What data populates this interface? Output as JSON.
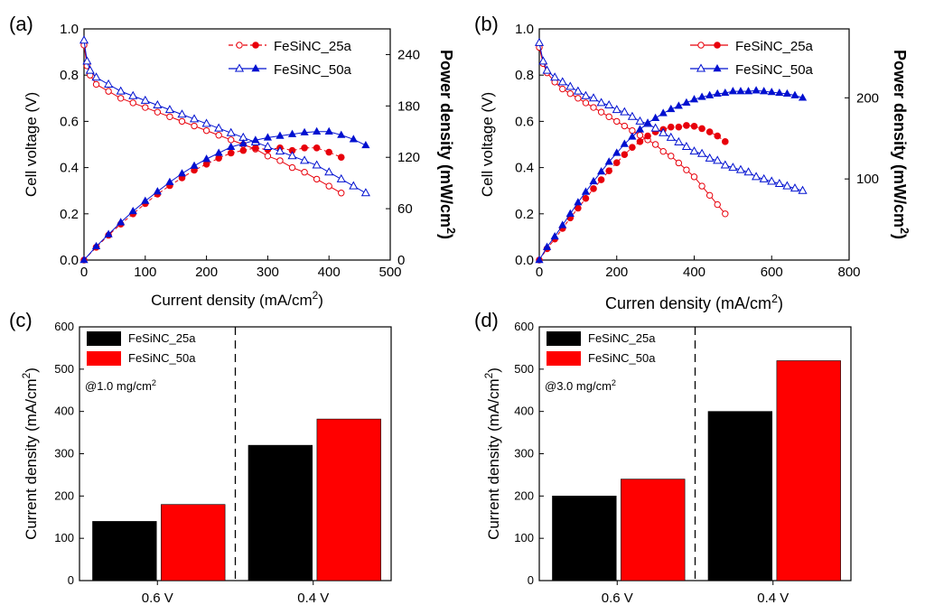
{
  "figure": {
    "panel_labels": [
      "(a)",
      "(b)",
      "(c)",
      "(d)"
    ]
  },
  "chart_data": [
    {
      "panel": "(a)",
      "type": "line",
      "xlabel": "Current density (mA/cm2)",
      "ylabel": "Cell voltage (V)",
      "y2label": "Power density (mW/cm2)",
      "xlim": [
        0,
        500
      ],
      "ylim": [
        0,
        1.0
      ],
      "y2lim": [
        0,
        270
      ],
      "x_ticks": [
        0,
        100,
        200,
        300,
        400,
        500
      ],
      "y_ticks": [
        0.0,
        0.2,
        0.4,
        0.6,
        0.8,
        1.0
      ],
      "y2_ticks": [
        0,
        60,
        120,
        180,
        240
      ],
      "legend": {
        "position": "top-right",
        "entries": [
          "FeSiNC_25a",
          "FeSiNC_50a"
        ]
      },
      "series": [
        {
          "name": "FeSiNC_25a",
          "color": "#e8000b",
          "polarization": {
            "x": [
              0,
              5,
              10,
              20,
              40,
              60,
              80,
              100,
              120,
              140,
              160,
              180,
              200,
              220,
              240,
              260,
              280,
              300,
              320,
              340,
              360,
              380,
              400,
              420
            ],
            "y": [
              0.93,
              0.84,
              0.8,
              0.76,
              0.73,
              0.7,
              0.68,
              0.66,
              0.64,
              0.62,
              0.6,
              0.58,
              0.56,
              0.54,
              0.52,
              0.5,
              0.48,
              0.45,
              0.43,
              0.4,
              0.38,
              0.35,
              0.32,
              0.29
            ]
          },
          "power": {
            "x": [
              0,
              20,
              40,
              60,
              80,
              100,
              120,
              140,
              160,
              180,
              200,
              220,
              240,
              260,
              280,
              300,
              320,
              340,
              360,
              380,
              400,
              420
            ],
            "y": [
              0,
              15,
              29,
              42,
              54,
              66,
              77,
              87,
              96,
              105,
              112,
              119,
              125,
              128,
              131,
              129,
              131,
              128,
              131,
              131,
              126,
              120
            ]
          }
        },
        {
          "name": "FeSiNC_50a",
          "color": "#0010d0",
          "polarization": {
            "x": [
              0,
              5,
              10,
              20,
              40,
              60,
              80,
              100,
              120,
              140,
              160,
              180,
              200,
              220,
              240,
              260,
              280,
              300,
              320,
              340,
              360,
              380,
              400,
              420,
              440,
              460
            ],
            "y": [
              0.95,
              0.86,
              0.82,
              0.79,
              0.76,
              0.73,
              0.71,
              0.69,
              0.67,
              0.65,
              0.63,
              0.61,
              0.59,
              0.57,
              0.55,
              0.53,
              0.51,
              0.49,
              0.47,
              0.45,
              0.43,
              0.41,
              0.38,
              0.35,
              0.32,
              0.29
            ]
          },
          "power": {
            "x": [
              0,
              20,
              40,
              60,
              80,
              100,
              120,
              140,
              160,
              180,
              200,
              220,
              240,
              260,
              280,
              300,
              320,
              340,
              360,
              380,
              400,
              420,
              440,
              460
            ],
            "y": [
              0,
              16,
              30,
              44,
              57,
              69,
              80,
              91,
              101,
              110,
              118,
              125,
              132,
              136,
              140,
              143,
              145,
              147,
              149,
              150,
              150,
              146,
              141,
              134
            ]
          }
        }
      ]
    },
    {
      "panel": "(b)",
      "type": "line",
      "xlabel": "Curren density (mA/cm2)",
      "ylabel": "Cell voltage (V)",
      "y2label": "Power density (mW/cm2)",
      "xlim": [
        0,
        800
      ],
      "ylim": [
        0,
        1.0
      ],
      "y2lim": [
        0,
        285
      ],
      "x_ticks": [
        0,
        200,
        400,
        600,
        800
      ],
      "y_ticks": [
        0.0,
        0.2,
        0.4,
        0.6,
        0.8,
        1.0
      ],
      "y2_ticks": [
        100,
        200
      ],
      "legend": {
        "position": "top-right",
        "entries": [
          "FeSiNC_25a",
          "FeSiNC_50a"
        ]
      },
      "series": [
        {
          "name": "FeSiNC_25a",
          "color": "#e8000b",
          "polarization": {
            "x": [
              0,
              10,
              20,
              40,
              60,
              80,
              100,
              120,
              140,
              160,
              180,
              200,
              220,
              240,
              260,
              280,
              300,
              320,
              340,
              360,
              380,
              400,
              420,
              440,
              460,
              480
            ],
            "y": [
              0.92,
              0.85,
              0.81,
              0.77,
              0.74,
              0.72,
              0.7,
              0.68,
              0.66,
              0.64,
              0.62,
              0.6,
              0.58,
              0.56,
              0.54,
              0.52,
              0.5,
              0.47,
              0.45,
              0.42,
              0.39,
              0.36,
              0.32,
              0.28,
              0.24,
              0.2
            ]
          },
          "power": {
            "x": [
              0,
              20,
              40,
              60,
              80,
              100,
              120,
              140,
              160,
              180,
              200,
              220,
              240,
              260,
              280,
              300,
              320,
              340,
              360,
              380,
              400,
              420,
              440,
              460,
              480
            ],
            "y": [
              0,
              14,
              26,
              39,
              52,
              64,
              76,
              88,
              99,
              110,
              120,
              130,
              139,
              146,
              153,
              158,
              161,
              164,
              164,
              166,
              165,
              162,
              158,
              153,
              146
            ]
          }
        },
        {
          "name": "FeSiNC_50a",
          "color": "#0010d0",
          "polarization": {
            "x": [
              0,
              10,
              20,
              40,
              60,
              80,
              100,
              120,
              140,
              160,
              180,
              200,
              220,
              240,
              260,
              280,
              300,
              320,
              340,
              360,
              380,
              400,
              420,
              440,
              460,
              480,
              500,
              520,
              540,
              560,
              580,
              600,
              620,
              640,
              660,
              680
            ],
            "y": [
              0.94,
              0.86,
              0.82,
              0.79,
              0.77,
              0.75,
              0.73,
              0.71,
              0.7,
              0.68,
              0.67,
              0.65,
              0.64,
              0.62,
              0.6,
              0.59,
              0.57,
              0.55,
              0.53,
              0.51,
              0.49,
              0.47,
              0.46,
              0.44,
              0.43,
              0.41,
              0.4,
              0.39,
              0.38,
              0.36,
              0.35,
              0.34,
              0.33,
              0.32,
              0.31,
              0.3
            ]
          },
          "power": {
            "x": [
              0,
              20,
              40,
              60,
              80,
              100,
              120,
              140,
              160,
              180,
              200,
              220,
              240,
              260,
              280,
              300,
              320,
              340,
              360,
              380,
              400,
              420,
              440,
              460,
              480,
              500,
              520,
              540,
              560,
              580,
              600,
              620,
              640,
              660,
              680
            ],
            "y": [
              0,
              16,
              29,
              43,
              57,
              71,
              84,
              97,
              109,
              121,
              132,
              143,
              152,
              161,
              169,
              175,
              181,
              186,
              190,
              194,
              198,
              201,
              203,
              205,
              206,
              208,
              208,
              208,
              209,
              208,
              207,
              206,
              205,
              203,
              200
            ]
          }
        }
      ]
    },
    {
      "panel": "(c)",
      "type": "bar",
      "categories": [
        "0.6 V",
        "0.4 V"
      ],
      "ylabel": "Current density (mA/cm2)",
      "ylim": [
        0,
        600
      ],
      "y_ticks": [
        0,
        100,
        200,
        300,
        400,
        500,
        600
      ],
      "annotation": "@1.0 mg/cm2",
      "legend": {
        "position": "top-left",
        "entries": [
          "FeSiNC_25a",
          "FeSiNC_50a"
        ]
      },
      "series": [
        {
          "name": "FeSiNC_25a",
          "color": "#000000",
          "values": [
            140,
            320
          ]
        },
        {
          "name": "FeSiNC_50a",
          "color": "#ff0000",
          "values": [
            180,
            382
          ]
        }
      ]
    },
    {
      "panel": "(d)",
      "type": "bar",
      "categories": [
        "0.6 V",
        "0.4 V"
      ],
      "ylabel": "Current density (mA/cm2)",
      "ylim": [
        0,
        600
      ],
      "y_ticks": [
        0,
        100,
        200,
        300,
        400,
        500,
        600
      ],
      "annotation": "@3.0 mg/cm2",
      "legend": {
        "position": "top-left",
        "entries": [
          "FeSiNC_25a",
          "FeSiNC_50a"
        ]
      },
      "series": [
        {
          "name": "FeSiNC_25a",
          "color": "#000000",
          "values": [
            200,
            400
          ]
        },
        {
          "name": "FeSiNC_50a",
          "color": "#ff0000",
          "values": [
            240,
            520
          ]
        }
      ]
    }
  ]
}
